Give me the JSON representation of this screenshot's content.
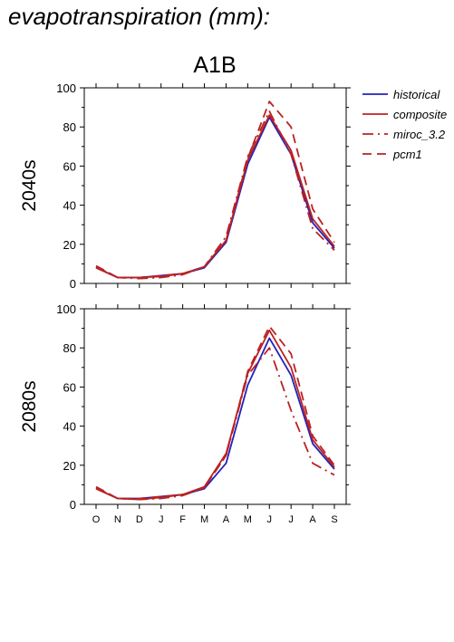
{
  "page_title": "evapotranspiration (mm):",
  "scenario": "A1B",
  "legend": [
    {
      "label": "historical",
      "color": "#2222bb",
      "dash": "solid"
    },
    {
      "label": "composite",
      "color": "#bb2222",
      "dash": "solid"
    },
    {
      "label": "miroc_3.2",
      "color": "#bb2222",
      "dash": "dashdot"
    },
    {
      "label": "pcm1",
      "color": "#bb2222",
      "dash": "dashed"
    }
  ],
  "chart_data": [
    {
      "type": "line",
      "title": "2040s",
      "xlabel": "",
      "ylabel": "",
      "categories": [
        "O",
        "N",
        "D",
        "J",
        "F",
        "M",
        "A",
        "M",
        "J",
        "J",
        "A",
        "S"
      ],
      "ylim": [
        0,
        100
      ],
      "yticks": [
        0,
        20,
        40,
        60,
        80,
        100
      ],
      "grid": false,
      "legend_position": "right",
      "series": [
        {
          "name": "historical",
          "values": [
            8,
            3,
            3,
            4,
            5,
            8,
            21,
            61,
            85,
            66,
            31,
            18
          ]
        },
        {
          "name": "composite",
          "values": [
            8,
            3,
            3,
            3.5,
            5,
            8.5,
            22,
            63,
            86,
            68,
            33,
            19
          ]
        },
        {
          "name": "miroc_3.2",
          "values": [
            8.5,
            3,
            2.5,
            3,
            4.5,
            8.5,
            24,
            65,
            88,
            66,
            28,
            17
          ]
        },
        {
          "name": "pcm1",
          "values": [
            9,
            3,
            3,
            4,
            5,
            8.5,
            22,
            64,
            93,
            80,
            38,
            21
          ]
        }
      ]
    },
    {
      "type": "line",
      "title": "2080s",
      "xlabel": "",
      "ylabel": "",
      "categories": [
        "O",
        "N",
        "D",
        "J",
        "F",
        "M",
        "A",
        "M",
        "J",
        "J",
        "A",
        "S"
      ],
      "ylim": [
        0,
        100
      ],
      "yticks": [
        0,
        20,
        40,
        60,
        80,
        100
      ],
      "grid": false,
      "legend_position": "right",
      "series": [
        {
          "name": "historical",
          "values": [
            8,
            3,
            3,
            4,
            5,
            8,
            21,
            61,
            85,
            66,
            31,
            18
          ]
        },
        {
          "name": "composite",
          "values": [
            8,
            3,
            2.5,
            3.5,
            5,
            9,
            26,
            67,
            89,
            70,
            33,
            19
          ]
        },
        {
          "name": "miroc_3.2",
          "values": [
            8.5,
            3,
            2.5,
            3,
            4.5,
            8.5,
            25,
            66,
            80,
            48,
            21,
            15
          ]
        },
        {
          "name": "pcm1",
          "values": [
            9,
            3,
            3,
            4,
            5,
            8.5,
            25,
            68,
            91,
            77,
            35,
            20
          ]
        }
      ]
    }
  ]
}
